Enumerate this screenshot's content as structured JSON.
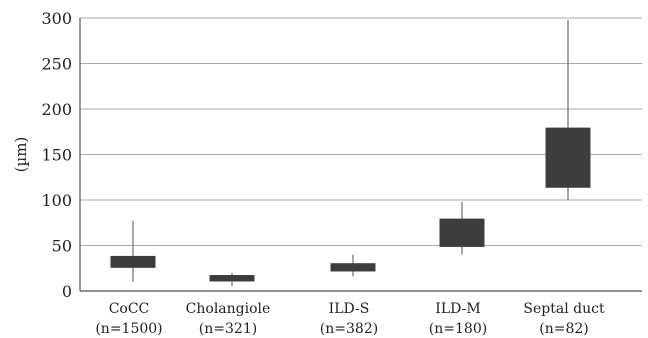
{
  "chart_data": {
    "type": "box",
    "title": "",
    "xlabel": "",
    "ylabel": "(µm)",
    "ylim": [
      0,
      300
    ],
    "yticks": [
      0,
      50,
      100,
      150,
      200,
      250,
      300
    ],
    "grid": true,
    "legend": "none",
    "box_color": "#3d3d3d",
    "whisker_color": "#7a7a7a",
    "categories": [
      {
        "name": "CoCC",
        "n": "(n=1500)",
        "whisker_low": 10,
        "q1": 26,
        "q3": 38,
        "whisker_high": 77
      },
      {
        "name": "Cholangiole",
        "n": "(n=321)",
        "whisker_low": 5,
        "q1": 11,
        "q3": 17,
        "whisker_high": 20
      },
      {
        "name": "ILD-S",
        "n": "(n=382)",
        "whisker_low": 16,
        "q1": 22,
        "q3": 30,
        "whisker_high": 40
      },
      {
        "name": "ILD-M",
        "n": "(n=180)",
        "whisker_low": 40,
        "q1": 49,
        "q3": 79,
        "whisker_high": 98
      },
      {
        "name": "Septal duct",
        "n": "(n=82)",
        "whisker_low": 100,
        "q1": 114,
        "q3": 179,
        "whisker_high": 298
      }
    ]
  }
}
